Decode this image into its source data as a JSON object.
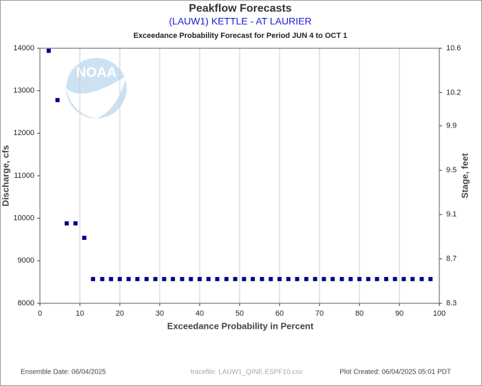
{
  "chart_data": {
    "type": "scatter",
    "title": "Peakflow Forecasts",
    "subtitle": "(LAUW1) KETTLE - AT LAURIER",
    "plot_title": "Exceedance Probability Forecast for Period JUN 4 to OCT 1",
    "x_label": "Exceedance Probability in Percent",
    "y_label": "Discharge, cfs",
    "y2_label": "Stage, feet",
    "logo_text": "NOAA",
    "footer_left": "Ensemble Date: 06/04/2025",
    "footer_center": "tracefile: LAUW1_QINE.ESPF10.csv",
    "footer_right": "Plot Created: 06/04/2025 05:01 PDT",
    "color": "#00008b",
    "grid": true,
    "x": [
      2.2,
      4.4,
      6.7,
      8.9,
      11.1,
      13.3,
      15.6,
      17.8,
      20,
      22.2,
      24.4,
      26.7,
      28.9,
      31.1,
      33.3,
      35.6,
      37.8,
      40,
      42.2,
      44.4,
      46.7,
      48.9,
      51.1,
      53.3,
      55.6,
      57.8,
      60,
      62.2,
      64.4,
      66.7,
      68.9,
      71.1,
      73.3,
      75.6,
      77.8,
      80,
      82.2,
      84.4,
      86.7,
      88.9,
      91.1,
      93.3,
      95.6,
      97.8
    ],
    "values": [
      13940,
      12780,
      9880,
      9880,
      9540,
      8570,
      8570,
      8570,
      8570,
      8570,
      8570,
      8570,
      8570,
      8570,
      8570,
      8570,
      8570,
      8570,
      8570,
      8570,
      8570,
      8570,
      8570,
      8570,
      8570,
      8570,
      8570,
      8570,
      8570,
      8570,
      8570,
      8570,
      8570,
      8570,
      8570,
      8570,
      8570,
      8570,
      8570,
      8570,
      8570,
      8570,
      8570,
      8570
    ],
    "xlim": [
      0,
      100
    ],
    "xticks": [
      0,
      10,
      20,
      30,
      40,
      50,
      60,
      70,
      80,
      90,
      100
    ],
    "ylim": [
      8000,
      14000
    ],
    "yticks": [
      8000,
      9000,
      10000,
      11000,
      12000,
      13000,
      14000
    ],
    "y2lim": [
      8.3,
      10.6
    ],
    "y2ticks": [
      8.3,
      8.7,
      9.1,
      9.5,
      9.9,
      10.2,
      10.6
    ]
  }
}
